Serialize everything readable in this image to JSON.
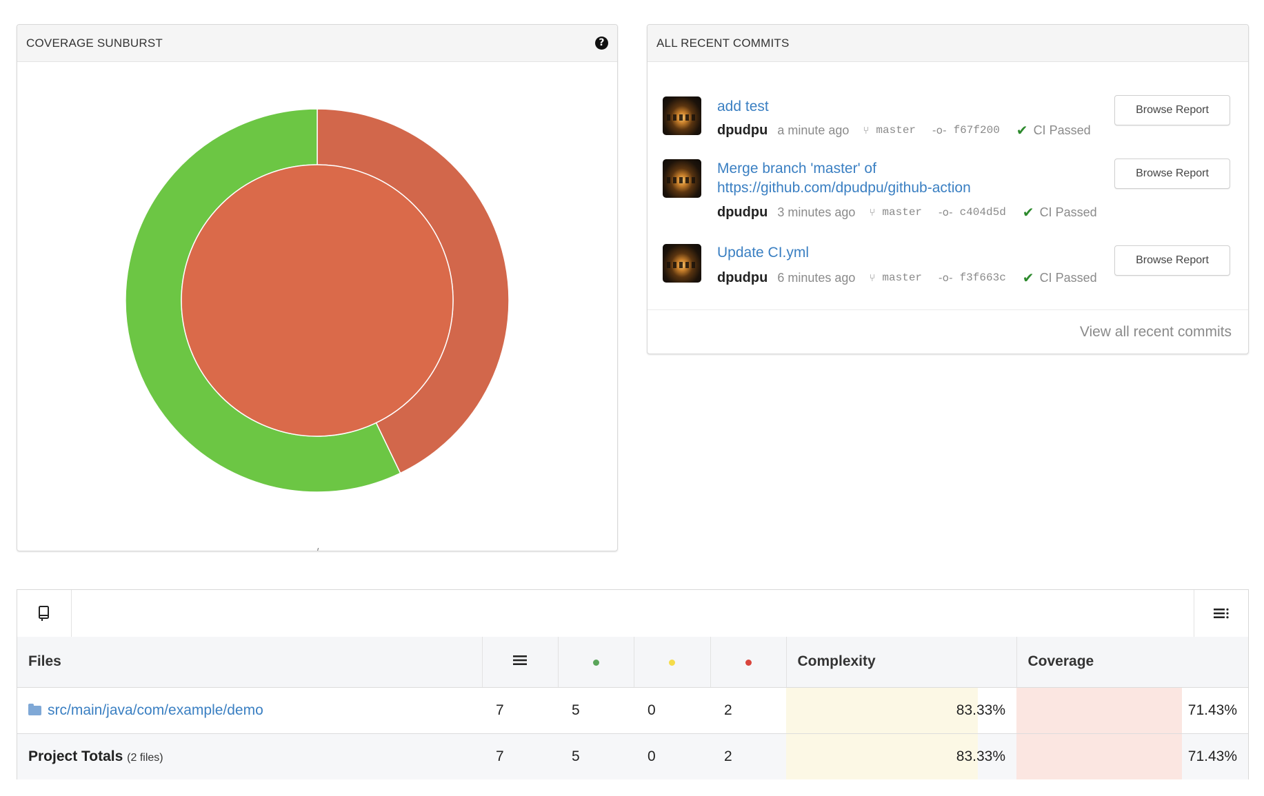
{
  "sunburst": {
    "title": "COVERAGE SUNBURST",
    "help_icon": "?",
    "path_label": "/",
    "colors": {
      "covered": "#6cc644",
      "missed": "#d2674b",
      "inner": "#da6a4a",
      "separator": "#ffffff"
    },
    "outer_covered_fraction": 0.5714,
    "outer_missed_fraction": 0.4286
  },
  "commits": {
    "title": "ALL RECENT COMMITS",
    "items": [
      {
        "message": "add test",
        "author": "dpudpu",
        "time": "a minute ago",
        "branch": "master",
        "sha": "f67f200",
        "ci": "CI Passed",
        "button": "Browse Report"
      },
      {
        "message": "Merge branch 'master' of https://github.com/dpudpu/github-action",
        "author": "dpudpu",
        "time": "3 minutes ago",
        "branch": "master",
        "sha": "c404d5d",
        "ci": "CI Passed",
        "button": "Browse Report"
      },
      {
        "message": "Update CI.yml",
        "author": "dpudpu",
        "time": "6 minutes ago",
        "branch": "master",
        "sha": "f3f663c",
        "ci": "CI Passed",
        "button": "Browse Report"
      }
    ],
    "view_all": "View all recent commits"
  },
  "files": {
    "headers": {
      "files": "Files",
      "complexity": "Complexity",
      "coverage": "Coverage"
    },
    "dot_colors": {
      "hit": "#5aa55a",
      "partial": "#f5dc4a",
      "missed": "#d9453d"
    },
    "rows": [
      {
        "name": "src/main/java/com/example/demo",
        "lines": "7",
        "hit": "5",
        "partial": "0",
        "missed": "2",
        "complexity": "83.33%",
        "coverage": "71.43%"
      }
    ],
    "totals": {
      "label": "Project Totals",
      "sub": "(2 files)",
      "lines": "7",
      "hit": "5",
      "partial": "0",
      "missed": "2",
      "complexity": "83.33%",
      "coverage": "71.43%"
    },
    "bar_colors": {
      "complexity": "#fcf8e5",
      "coverage": "#fbe6e1"
    },
    "complexity_fill": 0.8333,
    "coverage_fill": 0.7143
  }
}
